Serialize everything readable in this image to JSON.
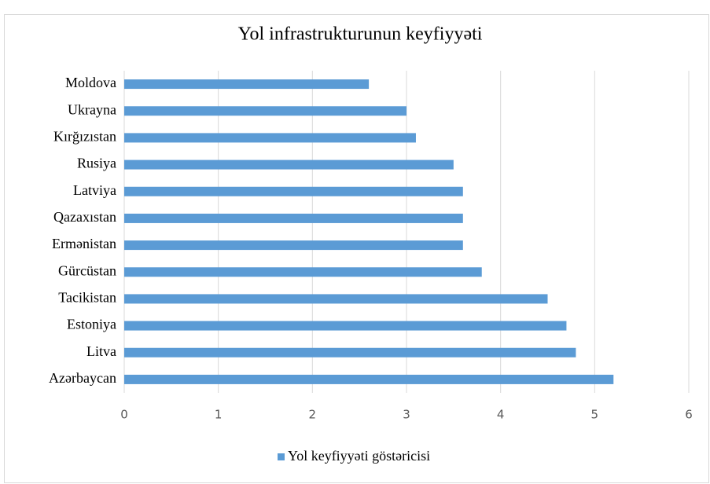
{
  "chart_data": {
    "type": "bar",
    "orientation": "horizontal",
    "title": "Yol infrastrukturunun keyfiyyəti",
    "categories": [
      "Moldova",
      "Ukrayna",
      "Kırğızıstan",
      "Rusiya",
      "Latviya",
      "Qazaxıstan",
      "Ermənistan",
      "Gürcüstan",
      "Tacikistan",
      "Estoniya",
      "Litva",
      "Azərbaycan"
    ],
    "series": [
      {
        "name": "Yol keyfiyyəti göstəricisi",
        "color": "#5b9bd5",
        "values": [
          2.6,
          3.0,
          3.1,
          3.5,
          3.6,
          3.6,
          3.6,
          3.8,
          4.5,
          4.7,
          4.8,
          5.2
        ]
      }
    ],
    "xlim": [
      0,
      6
    ],
    "xticks": [
      0,
      1,
      2,
      3,
      4,
      5,
      6
    ],
    "grid": true,
    "legend": "bottom"
  }
}
